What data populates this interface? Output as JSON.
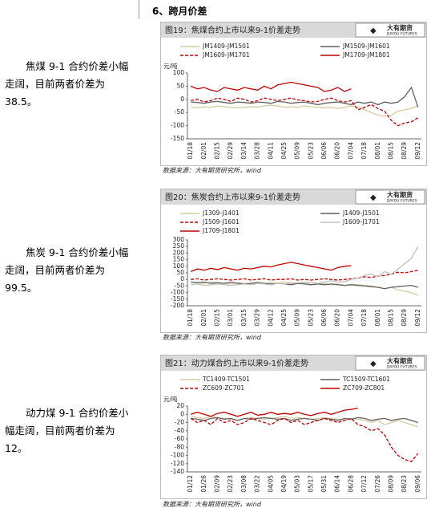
{
  "section_title": "6、跨月价差",
  "paragraphs": [
    "焦煤 9-1 合约价差小幅走阔，目前两者价差为 38.5。",
    "焦炭 9-1 合约价差小幅走阔，目前两者价差为 99.5。",
    "动力煤 9-1 合约价差小幅走阔，目前两者价差为 12。"
  ],
  "source": "数据来源：大有期货研究所，wind",
  "logo": {
    "cn": "大有期货",
    "en": "DAYOU FUTURES"
  },
  "chart_data": [
    {
      "type": "line",
      "title": "图19：焦煤合约上市以来9-1价差走势",
      "y_label": "元/吨",
      "categories": [
        "01/18",
        null,
        "02/01",
        null,
        "02/15",
        null,
        "02/29",
        null,
        "03/14",
        null,
        "03/28",
        null,
        "04/11",
        null,
        "04/25",
        null,
        "05/09",
        null,
        "05/23",
        null,
        "06/06",
        null,
        "06/20",
        null,
        "07/04",
        null,
        "07/18",
        null,
        "08/01",
        null,
        "08/15",
        null,
        "08/29",
        null,
        "09/12"
      ],
      "ylim": [
        -150,
        100
      ],
      "yticks": [
        100,
        50,
        0,
        -50,
        -100,
        -150
      ],
      "series": [
        {
          "name": "JM1409-JM1501",
          "color": "#d8c8a0",
          "values": [
            -30,
            -32,
            -28,
            -30,
            -25,
            -28,
            -30,
            -32,
            -30,
            -28,
            -30,
            -25,
            -22,
            -25,
            -30,
            -28,
            -30,
            -25,
            -28,
            -30,
            -32,
            -30,
            -35,
            -30,
            -25,
            -28,
            -40,
            -50,
            -60,
            -65,
            -60,
            -45,
            -40,
            -35,
            -25
          ]
        },
        {
          "name": "JM1509-JM1601",
          "color": "#606060",
          "values": [
            -10,
            -12,
            -15,
            -10,
            -8,
            -12,
            -15,
            -10,
            -12,
            -15,
            -10,
            -12,
            -15,
            -8,
            -10,
            -15,
            -12,
            -10,
            -15,
            -20,
            -15,
            -12,
            -10,
            -15,
            -20,
            -10,
            -15,
            -10,
            -20,
            -10,
            -15,
            -10,
            10,
            45,
            -30
          ]
        },
        {
          "name": "JM1609-JM1701",
          "color": "#c00000",
          "dashed": true,
          "values": [
            -5,
            0,
            -10,
            -5,
            5,
            0,
            -8,
            5,
            0,
            -10,
            -5,
            5,
            0,
            -5,
            0,
            5,
            -2,
            -5,
            -10,
            -8,
            0,
            5,
            -5,
            -10,
            -5,
            -40,
            -30,
            -20,
            -35,
            -45,
            -80,
            -100,
            -90,
            -85,
            -70
          ]
        },
        {
          "name": "JM1709-JM1801",
          "color": "#c00000",
          "values": [
            50,
            40,
            45,
            35,
            30,
            45,
            40,
            35,
            45,
            40,
            35,
            50,
            40,
            55,
            60,
            65,
            60,
            55,
            50,
            45,
            30,
            35,
            45,
            30,
            40,
            null,
            null,
            null,
            null,
            null,
            null,
            null,
            null,
            null,
            null
          ]
        }
      ]
    },
    {
      "type": "line",
      "title": "图20：焦炭合约上市以来9-1价差走势",
      "categories": [
        "01/18",
        null,
        "02/01",
        null,
        "02/15",
        null,
        "03/01",
        null,
        "03/15",
        null,
        "03/29",
        null,
        "04/12",
        null,
        "04/25",
        null,
        "05/09",
        null,
        "05/23",
        null,
        "06/06",
        null,
        "06/20",
        null,
        "07/04",
        null,
        "07/18",
        null,
        "08/01",
        null,
        "08/15",
        null,
        "08/29",
        null,
        "09/12"
      ],
      "ylim": [
        -200,
        300
      ],
      "yticks": [
        300,
        250,
        200,
        150,
        100,
        50,
        0,
        -50,
        -100,
        -150,
        -200
      ],
      "series": [
        {
          "name": "J1309-J1401",
          "color": "#d8c8a0",
          "values": [
            -20,
            -25,
            -30,
            -20,
            -25,
            -30,
            -35,
            -25,
            -30,
            -30,
            -20,
            -30,
            -25,
            -30,
            -20,
            -25,
            -30,
            -30,
            -40,
            -35,
            -30,
            -40,
            -35,
            -45,
            -40,
            -40,
            -45,
            -50,
            -60,
            -70,
            -60,
            -80,
            -90,
            -100,
            -120
          ]
        },
        {
          "name": "J1409-J1501",
          "color": "#606060",
          "values": [
            -20,
            -25,
            -20,
            -30,
            -25,
            -30,
            -20,
            -30,
            -35,
            -30,
            -25,
            -30,
            -35,
            -30,
            -35,
            -40,
            -30,
            -35,
            -40,
            -35,
            -40,
            -35,
            -40,
            -45,
            -40,
            -45,
            -50,
            -55,
            -60,
            -70,
            -60,
            -55,
            -50,
            -45,
            -60
          ]
        },
        {
          "name": "J1509-J1601",
          "color": "#c00000",
          "dashed": true,
          "values": [
            0,
            5,
            -5,
            0,
            5,
            0,
            -5,
            0,
            5,
            -5,
            0,
            5,
            -5,
            0,
            0,
            5,
            -5,
            0,
            -5,
            0,
            5,
            0,
            -5,
            0,
            5,
            10,
            20,
            15,
            25,
            30,
            40,
            55,
            50,
            60,
            70
          ]
        },
        {
          "name": "J1609-J1701",
          "color": "#c0c0c0",
          "values": [
            -40,
            -35,
            -45,
            -40,
            -35,
            -40,
            -45,
            -40,
            -35,
            -40,
            -30,
            -35,
            -40,
            -30,
            -35,
            -30,
            -25,
            -20,
            -25,
            -30,
            -20,
            -10,
            -20,
            -15,
            0,
            10,
            30,
            40,
            20,
            60,
            40,
            80,
            120,
            160,
            250
          ]
        },
        {
          "name": "J1709-J1801",
          "color": "#c00000",
          "values": [
            60,
            80,
            70,
            85,
            75,
            90,
            80,
            70,
            85,
            80,
            90,
            100,
            95,
            110,
            120,
            130,
            120,
            110,
            100,
            90,
            80,
            70,
            90,
            100,
            105,
            null,
            null,
            null,
            null,
            null,
            null,
            null,
            null,
            null,
            null
          ]
        }
      ]
    },
    {
      "type": "line",
      "title": "图21：动力煤合约上市以来9-1价差走势",
      "y_label": "元/吨",
      "categories": [
        "01/12",
        null,
        "01/26",
        null,
        "02/09",
        null,
        "02/23",
        null,
        "03/08",
        null,
        "03/22",
        null,
        "04/05",
        null,
        "04/19",
        null,
        "05/03",
        null,
        "05/17",
        null,
        "05/31",
        null,
        "06/14",
        null,
        "06/28",
        null,
        "07/12",
        null,
        "07/26",
        null,
        "08/09",
        null,
        "08/23",
        null,
        "09/06"
      ],
      "ylim": [
        -140,
        20
      ],
      "yticks": [
        20,
        0,
        -20,
        -40,
        -60,
        -80,
        -100,
        -120,
        -140
      ],
      "series": [
        {
          "name": "TC1409-TC1501",
          "color": "#d8c8a0",
          "values": [
            -5,
            -8,
            -10,
            -5,
            -8,
            -10,
            -12,
            -15,
            -10,
            -8,
            -10,
            -12,
            -10,
            -8,
            -5,
            -10,
            -8,
            -10,
            -12,
            -10,
            -8,
            -10,
            -12,
            -15,
            -10,
            -12,
            -15,
            -20,
            -15,
            -25,
            -20,
            -15,
            -20,
            -25,
            -30
          ]
        },
        {
          "name": "TC1509-TC1601",
          "color": "#606060",
          "values": [
            -10,
            -12,
            -15,
            -10,
            -8,
            -12,
            -10,
            -15,
            -10,
            -12,
            -10,
            -8,
            -10,
            -12,
            -10,
            -15,
            -12,
            -10,
            -12,
            -15,
            -10,
            -12,
            -15,
            -10,
            -12,
            -8,
            -10,
            -15,
            -12,
            -10,
            -15,
            -12,
            -10,
            -15,
            -20
          ]
        },
        {
          "name": "ZC609-ZC701",
          "color": "#c00000",
          "dashed": true,
          "values": [
            -10,
            -20,
            -15,
            -25,
            -10,
            -20,
            -15,
            -25,
            -20,
            -10,
            -15,
            -20,
            -25,
            -15,
            -10,
            -20,
            -15,
            -25,
            -20,
            -15,
            -10,
            -15,
            -20,
            -15,
            -10,
            -25,
            -30,
            -40,
            -35,
            -50,
            -80,
            -100,
            -110,
            -115,
            -95
          ]
        },
        {
          "name": "ZC709-ZC801",
          "color": "#c00000",
          "values": [
            0,
            5,
            0,
            -5,
            2,
            5,
            0,
            -5,
            0,
            5,
            -2,
            0,
            5,
            0,
            2,
            0,
            5,
            0,
            -3,
            2,
            5,
            0,
            5,
            10,
            12,
            15,
            null,
            null,
            null,
            null,
            null,
            null,
            null,
            null,
            null
          ]
        }
      ]
    }
  ]
}
